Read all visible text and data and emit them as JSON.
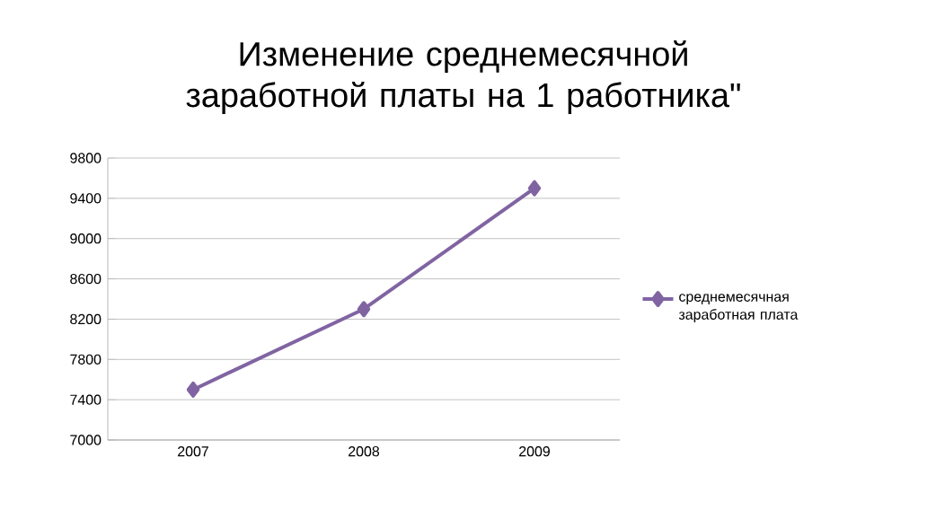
{
  "chart_data": {
    "type": "line",
    "title": "Изменение среднемесячной заработной платы на 1 работника\"",
    "categories": [
      "2007",
      "2008",
      "2009"
    ],
    "series": [
      {
        "name": "среднемесячная заработная плата",
        "color": "#8064a2",
        "values": [
          7500,
          8300,
          9500
        ]
      }
    ],
    "ylim": [
      7000,
      9800
    ],
    "yticks": [
      7000,
      7400,
      7800,
      8200,
      8600,
      9000,
      9400,
      9800
    ],
    "grid": "y",
    "legend": "right",
    "marker": "diamond",
    "line_style": "solid"
  }
}
